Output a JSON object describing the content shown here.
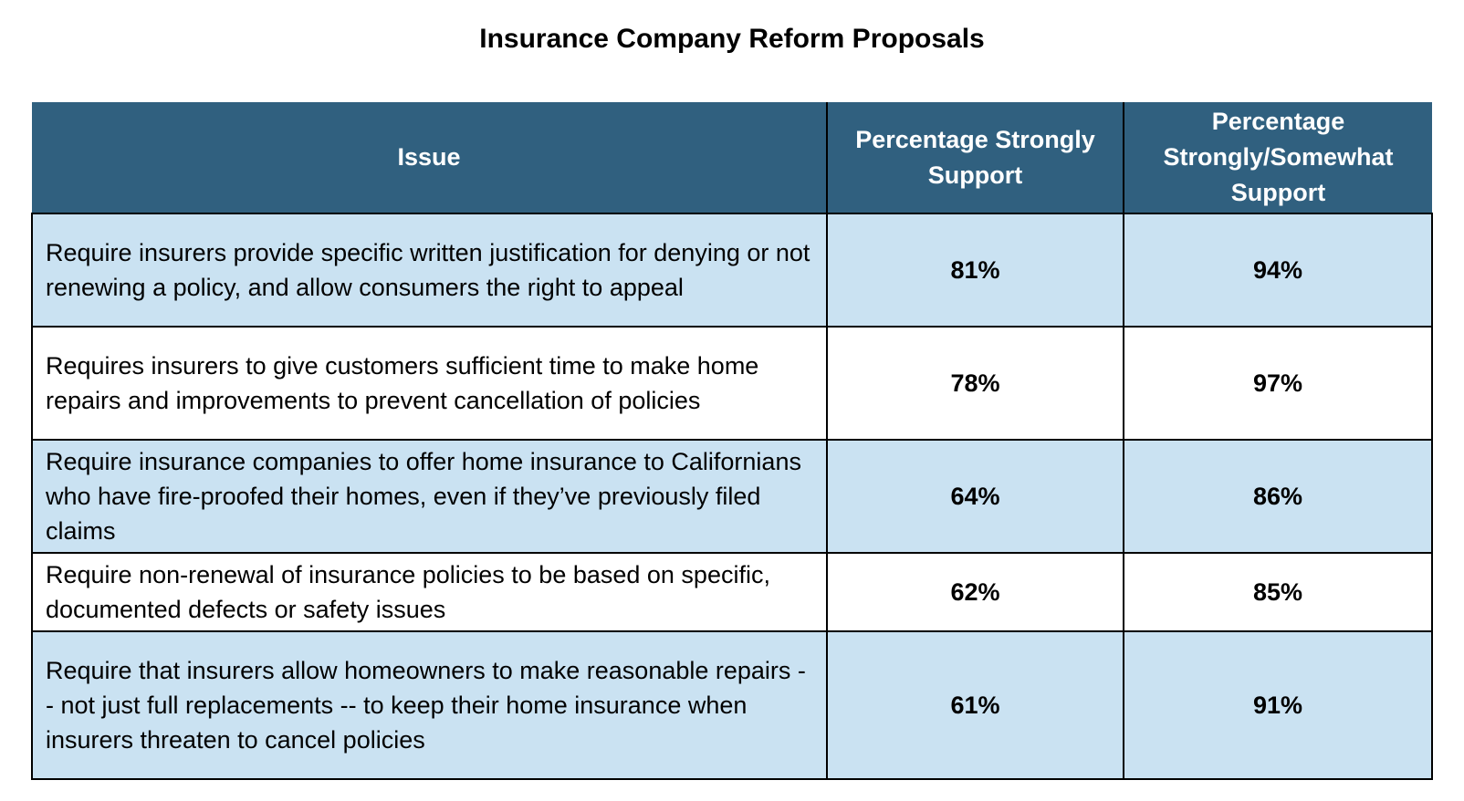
{
  "colors": {
    "header_background": "#30607F",
    "header_text": "#FFFFFF",
    "shaded_row_background": "#CAE2F2",
    "plain_row_background": "#FFFFFF",
    "grid_border": "#000000",
    "body_text": "#000000"
  },
  "chart_data": {
    "type": "table",
    "title": "Insurance Company Reform Proposals",
    "columns": [
      "Issue",
      "Percentage Strongly Support",
      "Percentage Strongly/Somewhat Support"
    ],
    "rows": [
      {
        "issue": "Require insurers provide specific written justification for denying or not renewing a policy, and allow consumers the right to appeal",
        "strongly_support": "81%",
        "strongly_somewhat_support": "94%"
      },
      {
        "issue": "Requires insurers to give customers sufficient time to make home repairs and improvements to prevent cancellation of policies",
        "strongly_support": "78%",
        "strongly_somewhat_support": "97%"
      },
      {
        "issue": "Require insurance companies to offer home insurance to Californians who have fire-proofed their homes, even if they’ve previously filed claims",
        "strongly_support": "64%",
        "strongly_somewhat_support": "86%"
      },
      {
        "issue": "Require non-renewal of insurance policies to be based on specific, documented defects or safety issues",
        "strongly_support": "62%",
        "strongly_somewhat_support": "85%"
      },
      {
        "issue": "Require that insurers allow homeowners to make reasonable repairs -- not just full replacements -- to keep their home insurance when insurers threaten to cancel policies",
        "strongly_support": "61%",
        "strongly_somewhat_support": "91%"
      }
    ],
    "values_strongly_support": [
      81,
      78,
      64,
      62,
      61
    ],
    "values_strongly_somewhat_support": [
      94,
      97,
      86,
      85,
      91
    ]
  }
}
